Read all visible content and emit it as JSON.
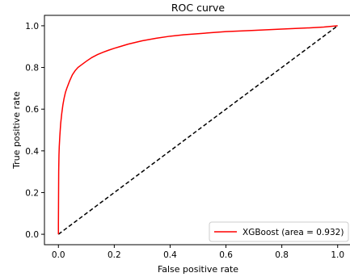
{
  "chart_data": {
    "type": "line",
    "title": "ROC curve",
    "xlabel": "False positive rate",
    "ylabel": "True positive rate",
    "xlim": [
      -0.05,
      1.05
    ],
    "ylim": [
      -0.05,
      1.05
    ],
    "xticks": [
      0.0,
      0.2,
      0.4,
      0.6,
      0.8,
      1.0
    ],
    "yticks": [
      0.0,
      0.2,
      0.4,
      0.6,
      0.8,
      1.0
    ],
    "xtick_labels": [
      "0.0",
      "0.2",
      "0.4",
      "0.6",
      "0.8",
      "1.0"
    ],
    "ytick_labels": [
      "0.0",
      "0.2",
      "0.4",
      "0.6",
      "0.8",
      "1.0"
    ],
    "grid": false,
    "legend_position": "lower-right",
    "series": [
      {
        "name": "XGBoost (area = 0.932)",
        "color": "#ff0000",
        "line_style": "solid",
        "x": [
          0.0,
          0.0,
          0.001,
          0.002,
          0.003,
          0.005,
          0.008,
          0.012,
          0.016,
          0.02,
          0.025,
          0.03,
          0.04,
          0.05,
          0.06,
          0.07,
          0.08,
          0.1,
          0.12,
          0.14,
          0.16,
          0.18,
          0.2,
          0.22,
          0.25,
          0.3,
          0.35,
          0.4,
          0.45,
          0.5,
          0.55,
          0.6,
          0.7,
          0.8,
          0.9,
          0.95,
          1.0
        ],
        "y": [
          0.0,
          0.05,
          0.3,
          0.38,
          0.42,
          0.47,
          0.53,
          0.58,
          0.62,
          0.65,
          0.68,
          0.7,
          0.735,
          0.765,
          0.785,
          0.8,
          0.81,
          0.83,
          0.848,
          0.862,
          0.873,
          0.883,
          0.892,
          0.9,
          0.912,
          0.928,
          0.94,
          0.95,
          0.957,
          0.962,
          0.967,
          0.972,
          0.978,
          0.984,
          0.99,
          0.994,
          1.0
        ]
      },
      {
        "name": "",
        "color": "#000000",
        "line_style": "dashed",
        "x": [
          0.0,
          1.0
        ],
        "y": [
          0.0,
          1.0
        ]
      }
    ]
  }
}
